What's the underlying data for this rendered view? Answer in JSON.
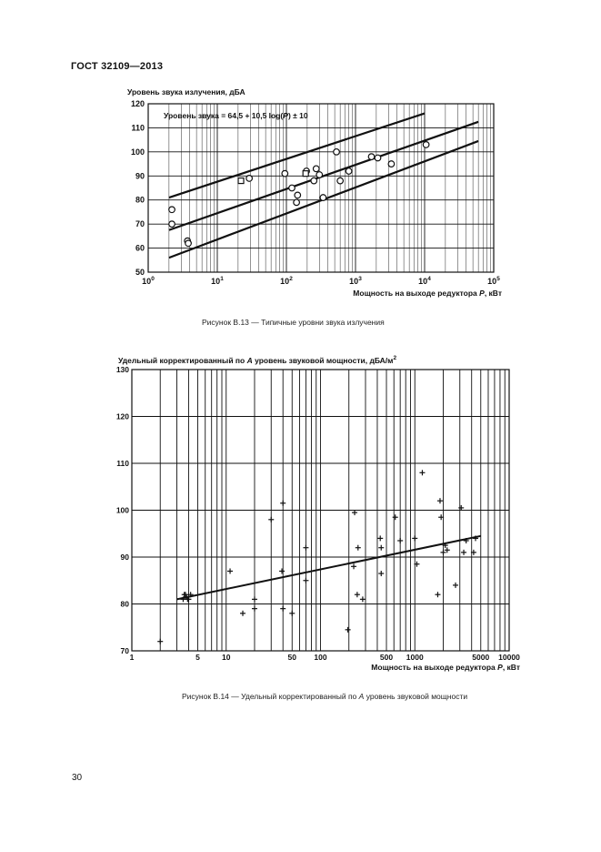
{
  "document": {
    "header": "ГОСТ 32109—2013",
    "page_number": "30"
  },
  "figure1": {
    "caption": "Рисунок  В.13 — Типичные уровни звука излучения"
  },
  "figure2": {
    "caption_prefix": "Рисунок  В.14 — Удельный корректированный по ",
    "caption_italic": "А",
    "caption_suffix": " уровень звуковой мощности"
  },
  "chart_data": [
    {
      "type": "scatter",
      "title": "",
      "ylabel": "Уровень звука излучения, дБА",
      "xlabel": "Мощность на выходе редуктора P, кВт",
      "xscale": "log",
      "xlim": [
        1,
        100000
      ],
      "ylim": [
        50,
        120
      ],
      "grid": true,
      "x_tick_labels": [
        "10^0",
        "10^1",
        "10^2",
        "10^3",
        "10^4",
        "10^5"
      ],
      "y_ticks": [
        50,
        60,
        70,
        80,
        90,
        100,
        110,
        120
      ],
      "annotation": "Уровень звука = 64,5 + 10,5 log(P) ± 10",
      "lines": [
        {
          "name": "upper",
          "x": [
            2,
            10000
          ],
          "y": [
            81,
            116
          ]
        },
        {
          "name": "center",
          "x": [
            2,
            60000
          ],
          "y": [
            67.5,
            112.5
          ]
        },
        {
          "name": "lower",
          "x": [
            2,
            60000
          ],
          "y": [
            56,
            104.5
          ]
        }
      ],
      "series": [
        {
          "marker": "circle",
          "x": [
            2.2,
            2.2,
            3.7,
            3.8,
            29,
            95,
            120,
            140,
            145,
            195,
            250,
            270,
            300,
            340,
            530,
            600,
            800,
            1700,
            2100,
            3300,
            10500
          ],
          "y": [
            76,
            70,
            63,
            62,
            89,
            91,
            85,
            79,
            82,
            92,
            88,
            93,
            90.5,
            81,
            100,
            88,
            92,
            98,
            97.5,
            95,
            103
          ]
        },
        {
          "marker": "square",
          "x": [
            22,
            190
          ],
          "y": [
            88,
            91
          ]
        }
      ]
    },
    {
      "type": "scatter",
      "title": "",
      "ylabel": "Удельный корректированный по А уровень звуковой мощности, дБА/м²",
      "xlabel": "Мощность на выходе редуктора P, кВт",
      "xscale": "log",
      "xlim": [
        1,
        10000
      ],
      "ylim": [
        70,
        130
      ],
      "grid": true,
      "x_tick_labels": [
        "1",
        "5",
        "10",
        "50",
        "100",
        "500",
        "1000",
        "5000",
        "10000"
      ],
      "y_ticks": [
        70,
        80,
        90,
        100,
        110,
        120,
        130
      ],
      "trend_line": {
        "x": [
          3,
          5000
        ],
        "y": [
          81,
          94.5
        ]
      },
      "series": [
        {
          "marker": "plus",
          "x": [
            2,
            3.5,
            3.6,
            3.8,
            4,
            3.7,
            3.9,
            4.2,
            11,
            15,
            20,
            20,
            30,
            39,
            40,
            40,
            50,
            70,
            70,
            195,
            225,
            230,
            250,
            245,
            280,
            430,
            440,
            440,
            620,
            700,
            1000,
            1050,
            1200,
            1750,
            1850,
            1900,
            2000,
            2100,
            2200,
            2700,
            3100,
            3300,
            3500,
            4200,
            4400
          ],
          "y": [
            72,
            81,
            82,
            81.5,
            81,
            82,
            81,
            82,
            87,
            78,
            81,
            79,
            98,
            87,
            101.5,
            79,
            78,
            92,
            85,
            74.5,
            88,
            99.5,
            92,
            82,
            81,
            94,
            92,
            86.5,
            98.5,
            93.5,
            94,
            88.5,
            108,
            82,
            102,
            98.5,
            91,
            92.5,
            91.5,
            84,
            100.5,
            91,
            93.5,
            91,
            94
          ]
        }
      ]
    }
  ]
}
